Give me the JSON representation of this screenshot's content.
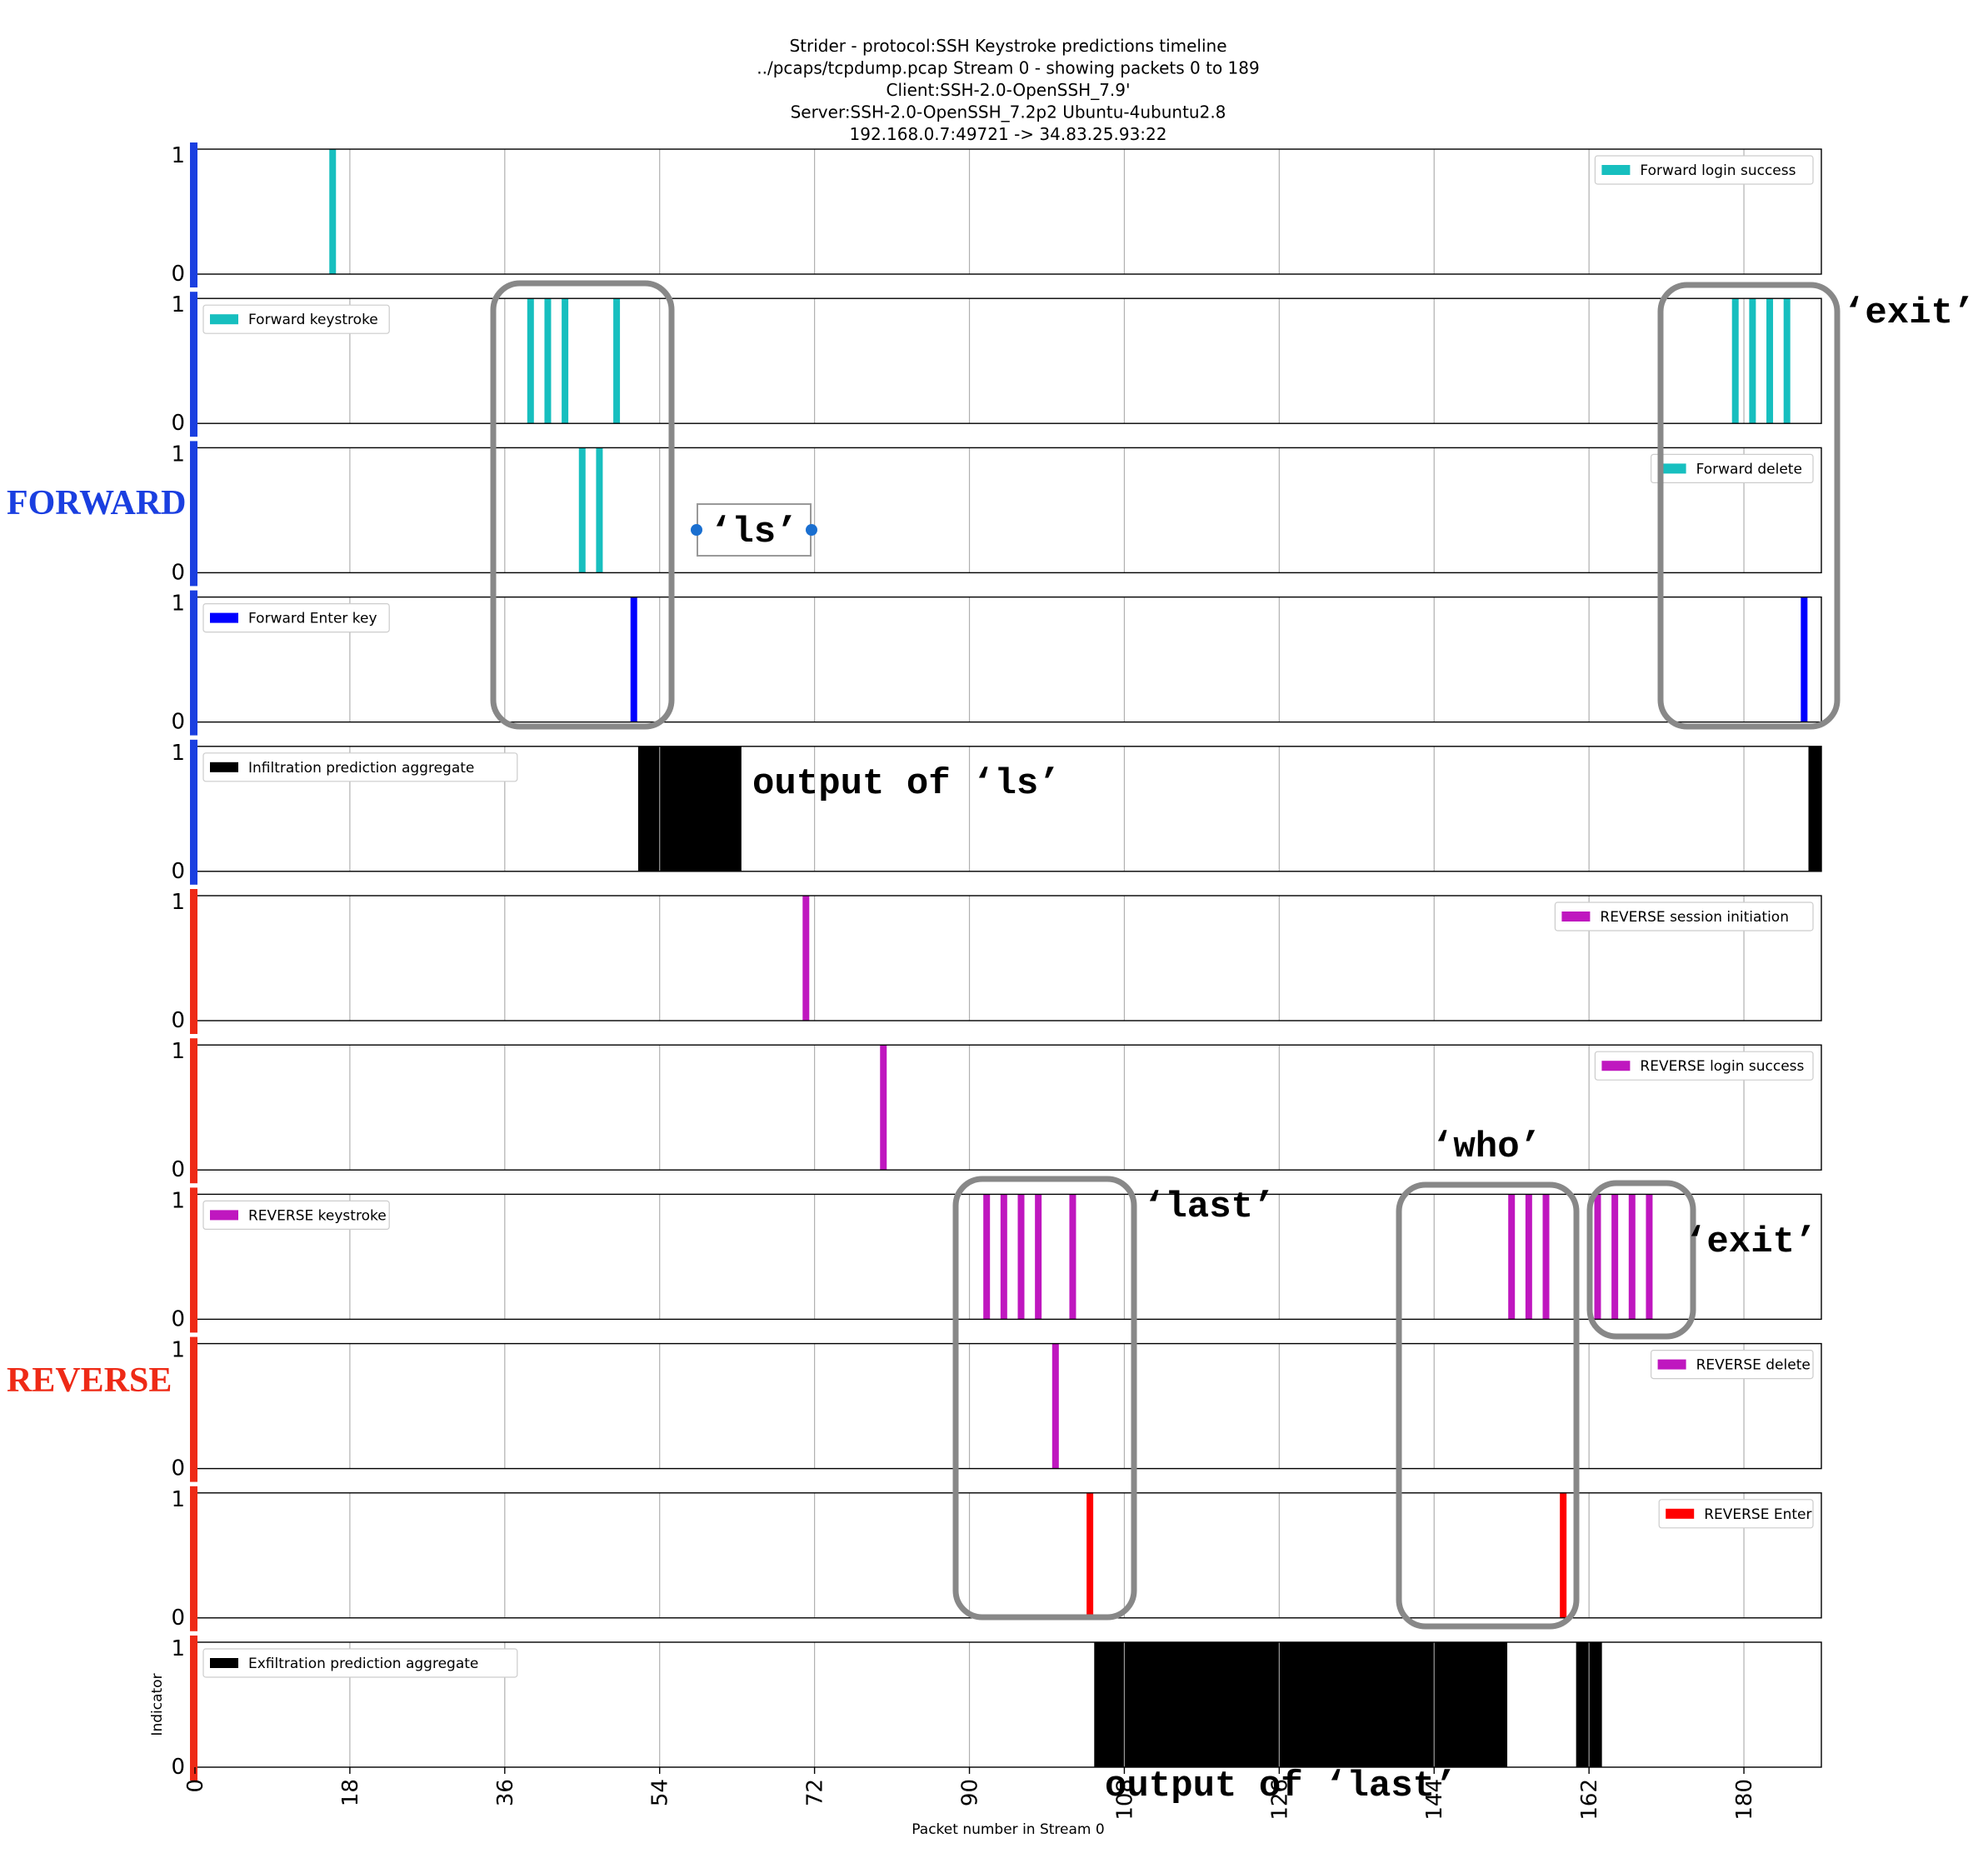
{
  "chart_data": {
    "type": "bar",
    "title_lines": [
      "Strider - protocol:SSH Keystroke predictions timeline",
      "../pcaps/tcpdump.pcap     Stream 0 - showing packets 0 to 189",
      "Client:SSH-2.0-OpenSSH_7.9'",
      "Server:SSH-2.0-OpenSSH_7.2p2 Ubuntu-4ubuntu2.8",
      "192.168.0.7:49721 -> 34.83.25.93:22"
    ],
    "xlabel": "Packet number in Stream 0",
    "ylabel": "Indicator",
    "xlim": [
      0,
      189
    ],
    "ylim": [
      0,
      1
    ],
    "x_ticks": [
      "0",
      "18",
      "36",
      "54",
      "72",
      "90",
      "108",
      "126",
      "144",
      "162",
      "180"
    ],
    "y_ticks": [
      "0",
      "1"
    ],
    "grid": true,
    "legend_placement": "per-panel (upper left / upper right)",
    "groups": [
      {
        "label": "FORWARD",
        "color": "#1a3fe0"
      },
      {
        "label": "REVERSE",
        "color": "#ee2a16"
      }
    ],
    "panels": [
      {
        "group": "FORWARD",
        "legend": "Forward login success",
        "legend_pos": "right",
        "color": "#17bfbf",
        "packets": [
          16
        ]
      },
      {
        "group": "FORWARD",
        "legend": "Forward keystroke",
        "legend_pos": "left",
        "color": "#17bfbf",
        "packets": [
          39,
          41,
          43,
          49,
          179,
          181,
          183,
          185
        ]
      },
      {
        "group": "FORWARD",
        "legend": "Forward delete",
        "legend_pos": "right",
        "color": "#17bfbf",
        "packets": [
          45,
          47
        ]
      },
      {
        "group": "FORWARD",
        "legend": "Forward Enter key",
        "legend_pos": "left",
        "color": "#0000ff",
        "packets": [
          51,
          187
        ]
      },
      {
        "group": "FORWARD",
        "legend": "Infiltration prediction aggregate",
        "legend_pos": "left",
        "color": "#000000",
        "ranges": [
          [
            51.5,
            63.5
          ],
          [
            187.5,
            189
          ]
        ]
      },
      {
        "group": "REVERSE",
        "legend": "REVERSE session initiation",
        "legend_pos": "right",
        "color": "#bf17bf",
        "packets": [
          71
        ]
      },
      {
        "group": "REVERSE",
        "legend": "REVERSE login success",
        "legend_pos": "right",
        "color": "#bf17bf",
        "packets": [
          80
        ]
      },
      {
        "group": "REVERSE",
        "legend": "REVERSE keystroke",
        "legend_pos": "left",
        "color": "#bf17bf",
        "packets": [
          92,
          94,
          96,
          98,
          102,
          153,
          155,
          157,
          163,
          165,
          167,
          169
        ]
      },
      {
        "group": "REVERSE",
        "legend": "REVERSE delete",
        "legend_pos": "right",
        "color": "#bf17bf",
        "packets": [
          100
        ]
      },
      {
        "group": "REVERSE",
        "legend": "REVERSE Enter",
        "legend_pos": "right",
        "color": "#ff0000",
        "packets": [
          104,
          159
        ]
      },
      {
        "group": "REVERSE",
        "legend": "Exfiltration prediction aggregate",
        "legend_pos": "left",
        "color": "#000000",
        "ranges": [
          [
            104.5,
            152.5
          ],
          [
            160.5,
            163.5
          ]
        ]
      }
    ],
    "annotations": [
      {
        "text": "‘ls’"
      },
      {
        "text": "‘exit’"
      },
      {
        "text": "output of ‘ls’"
      },
      {
        "text": "‘last’"
      },
      {
        "text": "‘who’"
      },
      {
        "text": "‘exit’"
      },
      {
        "text": "output of ‘last’"
      }
    ]
  }
}
